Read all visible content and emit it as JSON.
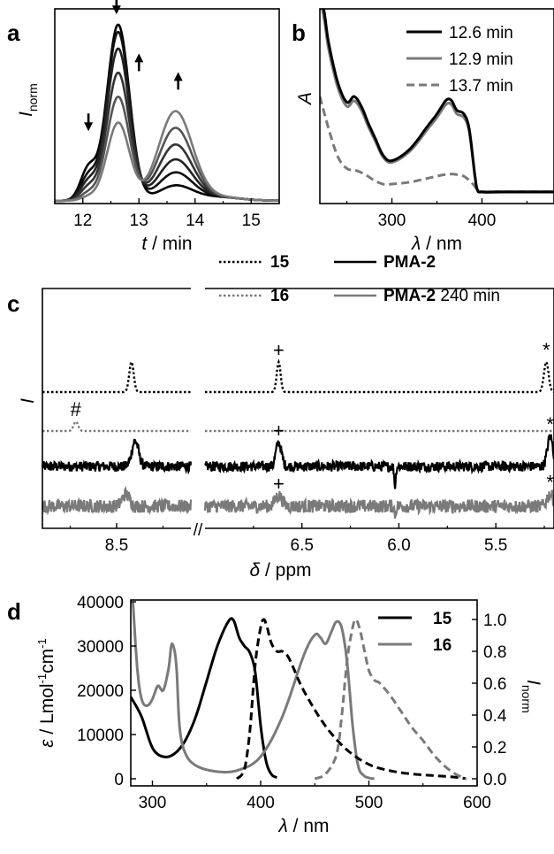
{
  "colors": {
    "black": "#000000",
    "grey": "#7a7a7a",
    "dark": "#222222"
  },
  "panel_labels": {
    "a": "a",
    "b": "b",
    "c": "c",
    "d": "d"
  },
  "chart_data": [
    {
      "panel": "a",
      "type": "line",
      "xlabel_var": "t",
      "xlabel_unit": " / min",
      "ylabel_var": "I",
      "ylabel_sub": "norm",
      "xlim": [
        11.5,
        15.5
      ],
      "ylim": [
        0,
        1.05
      ],
      "xticks": [
        12,
        13,
        14,
        15
      ],
      "arrows": [
        {
          "x": 12.1,
          "y": 0.4,
          "dir": "down"
        },
        {
          "x": 12.6,
          "y": 1.03,
          "dir": "down"
        },
        {
          "x": 13.0,
          "y": 0.8,
          "dir": "up"
        },
        {
          "x": 13.7,
          "y": 0.7,
          "dir": "up"
        }
      ],
      "series": [
        {
          "values": [
            0.17,
            0.95,
            0.08
          ],
          "color": "#000000"
        },
        {
          "values": [
            0.13,
            0.91,
            0.15
          ],
          "color": "#111111"
        },
        {
          "values": [
            0.1,
            0.82,
            0.22
          ],
          "color": "#222222"
        },
        {
          "values": [
            0.07,
            0.69,
            0.3
          ],
          "color": "#333333"
        },
        {
          "values": [
            0.04,
            0.56,
            0.39
          ],
          "color": "#555555"
        },
        {
          "values": [
            0.02,
            0.42,
            0.48
          ],
          "color": "#7a7a7a"
        }
      ]
    },
    {
      "panel": "b",
      "type": "line",
      "xlabel_var": "λ",
      "xlabel_unit": " / nm",
      "ylabel": "A",
      "xlim": [
        220,
        480
      ],
      "ylim": [
        0,
        1
      ],
      "xticks": [
        300,
        400
      ],
      "series": [
        {
          "name": "12.6 min",
          "style": "solid",
          "color": "#000000",
          "scale": 1.0,
          "x": [
            220,
            225,
            230,
            240,
            250,
            258,
            266,
            274,
            282,
            290,
            300,
            320,
            340,
            350,
            360,
            366,
            372,
            380,
            386,
            392,
            395,
            400,
            420,
            440,
            480
          ],
          "y": [
            1.1,
            0.98,
            0.82,
            0.62,
            0.52,
            0.55,
            0.5,
            0.41,
            0.33,
            0.25,
            0.22,
            0.28,
            0.4,
            0.46,
            0.53,
            0.53,
            0.48,
            0.46,
            0.38,
            0.15,
            0.07,
            0.06,
            0.06,
            0.06,
            0.06
          ]
        },
        {
          "name": "12.9 min",
          "style": "solid",
          "color": "#7a7a7a",
          "scale": 0.96,
          "x": [
            220,
            225,
            230,
            240,
            250,
            258,
            266,
            274,
            282,
            290,
            300,
            320,
            340,
            350,
            360,
            366,
            372,
            380,
            386,
            392,
            395,
            400,
            420,
            440,
            480
          ],
          "y": [
            1.1,
            0.98,
            0.82,
            0.62,
            0.52,
            0.55,
            0.5,
            0.41,
            0.33,
            0.25,
            0.22,
            0.28,
            0.4,
            0.46,
            0.53,
            0.53,
            0.48,
            0.46,
            0.38,
            0.15,
            0.07,
            0.06,
            0.06,
            0.06,
            0.06
          ]
        },
        {
          "name": "13.7 min",
          "style": "dashed",
          "color": "#7a7a7a",
          "scale": 1.0,
          "x": [
            220,
            230,
            240,
            250,
            260,
            270,
            280,
            290,
            300,
            320,
            340,
            360,
            370,
            380,
            390,
            395,
            400,
            420,
            440,
            480
          ],
          "y": [
            0.55,
            0.38,
            0.24,
            0.18,
            0.17,
            0.15,
            0.12,
            0.1,
            0.1,
            0.11,
            0.13,
            0.15,
            0.15,
            0.14,
            0.1,
            0.07,
            0.06,
            0.06,
            0.06,
            0.06
          ]
        }
      ]
    },
    {
      "panel": "c",
      "type": "line",
      "xlabel_var": "δ",
      "xlabel_unit": " / ppm",
      "ylabel": "I",
      "axis_break": "//",
      "left_xlim": [
        8.9,
        8.1
      ],
      "right_xlim": [
        7.0,
        5.2
      ],
      "left_xticks": [
        8.5
      ],
      "right_xticks": [
        6.5,
        6.0,
        5.5
      ],
      "series": [
        {
          "name": "15",
          "style": "dotted",
          "color": "#000000",
          "noise": 0,
          "peaks": [
            [
              8.42,
              1.0,
              0.012
            ],
            [
              6.62,
              1.0,
              0.01
            ],
            [
              5.24,
              1.0,
              0.012
            ]
          ],
          "marks": [
            {
              "symbol": "+",
              "x": 6.62
            },
            {
              "symbol": "*",
              "x": 5.24
            }
          ]
        },
        {
          "name": "16",
          "style": "dotted",
          "color": "#7a7a7a",
          "noise": 0,
          "peaks": [
            [
              8.72,
              0.6,
              0.012
            ]
          ],
          "marks": [
            {
              "symbol": "#",
              "x": 8.72
            }
          ]
        },
        {
          "name": "PMA-2",
          "style": "solid",
          "color": "#000000",
          "noise": 0.16,
          "peaks": [
            [
              8.4,
              0.8,
              0.018
            ],
            [
              6.62,
              0.75,
              0.014
            ],
            [
              5.22,
              0.95,
              0.014
            ],
            [
              6.02,
              -0.6,
              0.004
            ]
          ],
          "marks": [
            {
              "symbol": "+",
              "x": 6.62
            },
            {
              "symbol": "*",
              "x": 5.22
            }
          ]
        },
        {
          "name": "PMA-2",
          "suffix": " 240 min",
          "style": "solid",
          "color": "#7a7a7a",
          "noise": 0.25,
          "peaks": [
            [
              8.45,
              0.45,
              0.02
            ],
            [
              6.62,
              0.4,
              0.018
            ],
            [
              5.22,
              0.45,
              0.016
            ],
            [
              6.02,
              -0.3,
              0.004
            ]
          ],
          "marks": [
            {
              "symbol": "+",
              "x": 6.62
            },
            {
              "symbol": "*",
              "x": 5.22
            }
          ]
        }
      ]
    },
    {
      "panel": "d",
      "type": "line",
      "xlabel_var": "λ",
      "xlabel_unit": " / nm",
      "ylabel_var": "ε",
      "ylabel_unit": " / Lmol",
      "ylabel_sup1": "-1",
      "ylabel_mid": "cm",
      "ylabel_sup2": "-1",
      "y2label": "I",
      "y2label_sub": "norm",
      "xlim": [
        280,
        600
      ],
      "ylim": [
        -2000,
        40000
      ],
      "y2lim": [
        -0.05,
        1.0
      ],
      "xticks": [
        300,
        400,
        500,
        600
      ],
      "yticks": [
        0,
        10000,
        20000,
        30000,
        40000
      ],
      "y2ticks": [
        0.0,
        0.2,
        0.4,
        0.6,
        0.8,
        1.0
      ],
      "series": [
        {
          "name": "15",
          "role": "absorption",
          "axis": "left",
          "style": "solid",
          "color": "#000000",
          "x": [
            280,
            290,
            300,
            310,
            320,
            330,
            340,
            350,
            360,
            370,
            375,
            380,
            385,
            390,
            395,
            400,
            405,
            410,
            415
          ],
          "y": [
            18500,
            14000,
            7000,
            5000,
            5600,
            8500,
            14000,
            22000,
            30000,
            35500,
            35800,
            32000,
            30000,
            28500,
            24000,
            12000,
            4000,
            1000,
            300
          ]
        },
        {
          "name": "16",
          "role": "absorption",
          "axis": "left",
          "style": "solid",
          "color": "#7a7a7a",
          "x": [
            282,
            286,
            290,
            295,
            300,
            305,
            310,
            315,
            318,
            322,
            325,
            330,
            340,
            360,
            380,
            400,
            420,
            440,
            450,
            455,
            460,
            465,
            470,
            475,
            480,
            485,
            490,
            495,
            500,
            505
          ],
          "y": [
            40000,
            25000,
            18000,
            16500,
            18000,
            21000,
            20000,
            25000,
            30500,
            26000,
            12000,
            6000,
            3000,
            1600,
            2000,
            5000,
            14000,
            28000,
            32500,
            32000,
            30500,
            33000,
            35500,
            34000,
            26000,
            12000,
            3000,
            800,
            200,
            0
          ]
        },
        {
          "name": "15",
          "role": "emission",
          "axis": "right",
          "style": "dashed",
          "color": "#000000",
          "x": [
            378,
            385,
            390,
            395,
            400,
            403,
            406,
            410,
            415,
            420,
            425,
            430,
            440,
            460,
            480,
            500,
            520,
            540,
            560,
            580,
            590
          ],
          "y": [
            0.0,
            0.06,
            0.3,
            0.72,
            0.95,
            1.0,
            0.95,
            0.85,
            0.8,
            0.8,
            0.77,
            0.7,
            0.55,
            0.33,
            0.18,
            0.09,
            0.05,
            0.03,
            0.02,
            0.01,
            0.0
          ]
        },
        {
          "name": "16",
          "role": "emission",
          "axis": "right",
          "style": "dashed",
          "color": "#7a7a7a",
          "x": [
            450,
            460,
            470,
            475,
            480,
            485,
            488,
            492,
            496,
            500,
            505,
            510,
            520,
            530,
            540,
            550,
            560,
            570,
            580,
            590
          ],
          "y": [
            0.0,
            0.03,
            0.15,
            0.4,
            0.75,
            0.95,
            1.0,
            0.93,
            0.8,
            0.68,
            0.62,
            0.6,
            0.52,
            0.42,
            0.32,
            0.24,
            0.15,
            0.08,
            0.03,
            0.0
          ]
        }
      ]
    }
  ]
}
